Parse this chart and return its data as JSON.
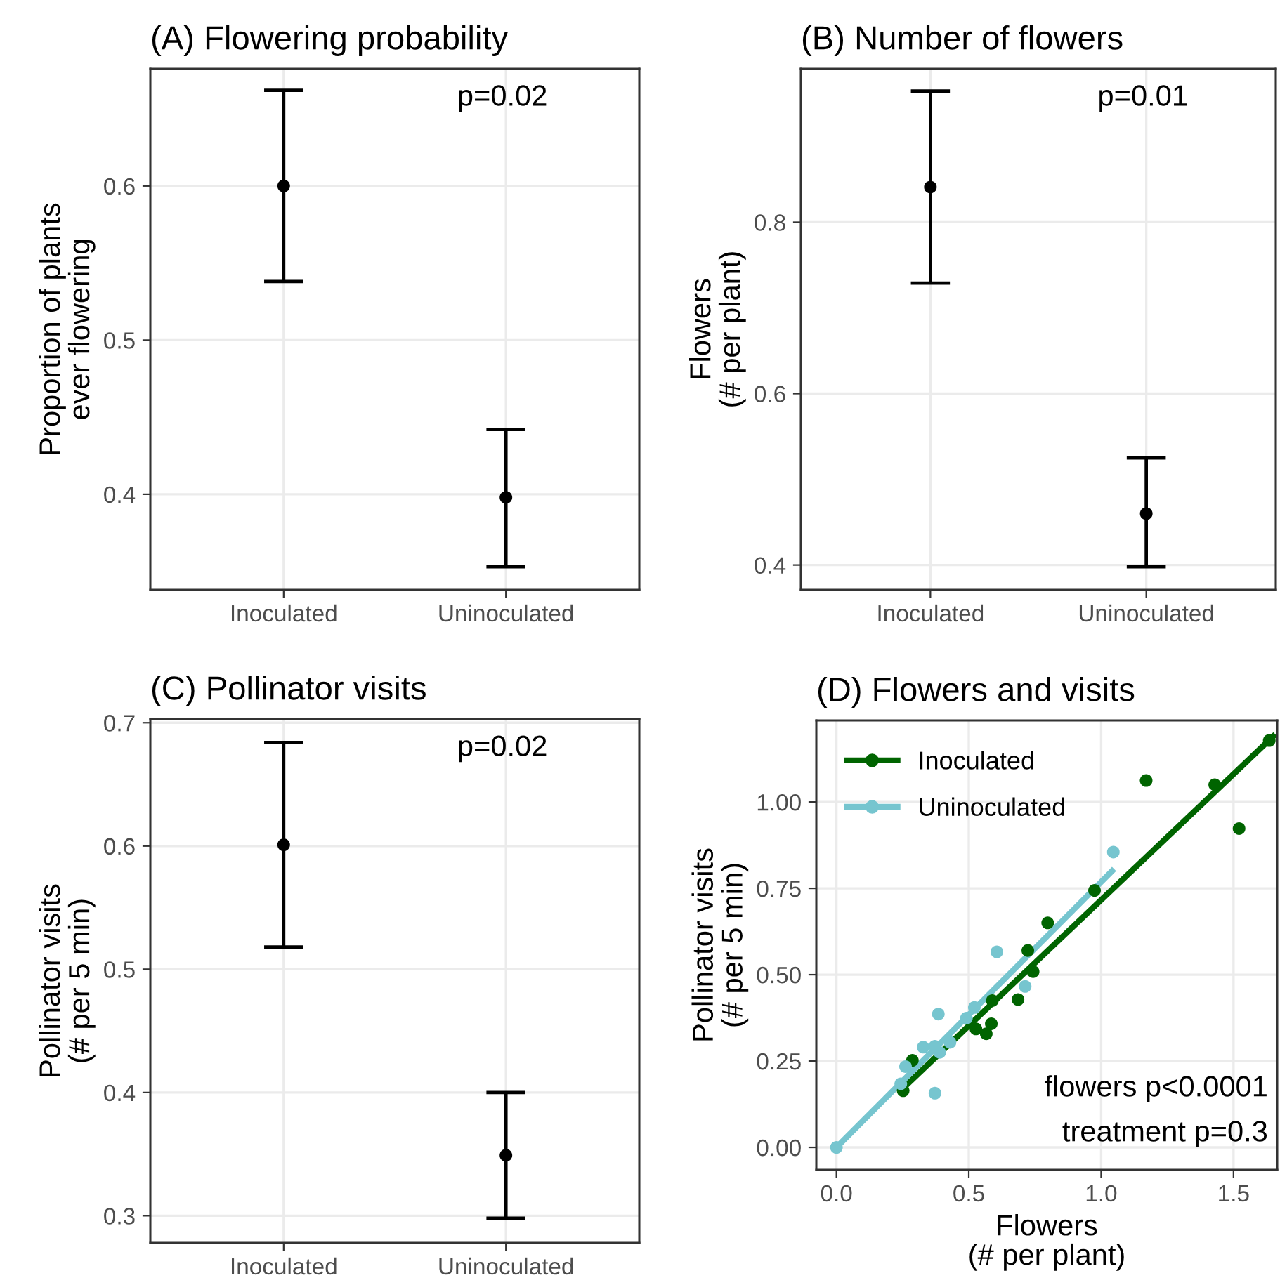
{
  "chart_data": [
    {
      "type": "scatter",
      "title": "(A) Flowering probability",
      "ylabel": "Proportion of plants\never flowering",
      "categories": [
        "Inoculated",
        "Uninoculated"
      ],
      "values": [
        0.6,
        0.398
      ],
      "errors": [
        [
          0.538,
          0.662
        ],
        [
          0.353,
          0.442
        ]
      ],
      "color": "#000000",
      "ylim": [
        0.338,
        0.676
      ],
      "yticks": [
        0.4,
        0.5,
        0.6
      ],
      "grid": true,
      "marker": "circle",
      "annotations": [
        "p=0.02"
      ]
    },
    {
      "type": "scatter",
      "title": "(B) Number of flowers",
      "ylabel": "Flowers\n(# per plant)",
      "categories": [
        "Inoculated",
        "Uninoculated"
      ],
      "values": [
        0.841,
        0.46
      ],
      "errors": [
        [
          0.729,
          0.953
        ],
        [
          0.398,
          0.525
        ]
      ],
      "color": "#000000",
      "ylim": [
        0.371,
        0.979
      ],
      "yticks": [
        0.4,
        0.6,
        0.8
      ],
      "grid": true,
      "marker": "circle",
      "annotations": [
        "p=0.01"
      ]
    },
    {
      "type": "scatter",
      "title": "(C) Pollinator visits",
      "ylabel": "Pollinator visits\n(# per 5 min)",
      "categories": [
        "Inoculated",
        "Uninoculated"
      ],
      "values": [
        0.601,
        0.349
      ],
      "errors": [
        [
          0.518,
          0.684
        ],
        [
          0.298,
          0.4
        ]
      ],
      "color": "#000000",
      "ylim": [
        0.278,
        0.703
      ],
      "yticks": [
        0.3,
        0.4,
        0.5,
        0.6,
        0.7
      ],
      "grid": true,
      "marker": "circle",
      "annotations": [
        "p=0.02"
      ]
    },
    {
      "type": "scatter",
      "title": "(D) Flowers and visits",
      "xlabel": "Flowers\n(# per plant)",
      "ylabel": "Pollinator visits\n(# per 5 min)",
      "xlim": [
        -0.076,
        1.665
      ],
      "xticks": [
        {
          "value": 0,
          "label": "0.0"
        },
        0.5,
        {
          "value": 1,
          "label": "1.0"
        },
        1.5
      ],
      "ylim": [
        -0.065,
        1.236
      ],
      "yticks": [
        {
          "value": 0,
          "label": "0.00"
        },
        0.25,
        {
          "value": 0.5,
          "label": "0.50"
        },
        0.75,
        {
          "value": 1,
          "label": "1.00"
        }
      ],
      "grid": true,
      "legend": "top left",
      "annotations": [
        "flowers p<0.0001",
        "treatment p=0.3"
      ],
      "series": [
        {
          "name": "Inoculated",
          "color": "#006400",
          "marker": "circle",
          "x": [
            1.635,
            1.17,
            1.429,
            1.521,
            0.975,
            0.798,
            0.723,
            0.743,
            0.686,
            0.589,
            0.585,
            0.527,
            0.566,
            0.287,
            0.252
          ],
          "values": [
            1.178,
            1.062,
            1.05,
            0.923,
            0.744,
            0.65,
            0.57,
            0.509,
            0.428,
            0.425,
            0.358,
            0.343,
            0.329,
            0.252,
            0.164
          ]
        },
        {
          "name": "Uninoculated",
          "color": "#76c5cf",
          "marker": "circle",
          "x": [
            1.046,
            0.606,
            0.713,
            0.521,
            0.491,
            0.385,
            0.429,
            0.39,
            0.372,
            0.328,
            0.261,
            0.243,
            0.372,
            0.0
          ],
          "values": [
            0.855,
            0.566,
            0.466,
            0.405,
            0.374,
            0.386,
            0.304,
            0.275,
            0.293,
            0.29,
            0.234,
            0.184,
            0.157,
            0.0
          ]
        },
        {
          "type": "line",
          "color": "#006400",
          "x": [
            0.25,
            1.65
          ],
          "values": [
            0.17,
            1.19
          ]
        },
        {
          "type": "line",
          "color": "#76c5cf",
          "x": [
            0.0,
            1.041
          ],
          "values": [
            0.0,
            0.8
          ]
        }
      ]
    }
  ]
}
